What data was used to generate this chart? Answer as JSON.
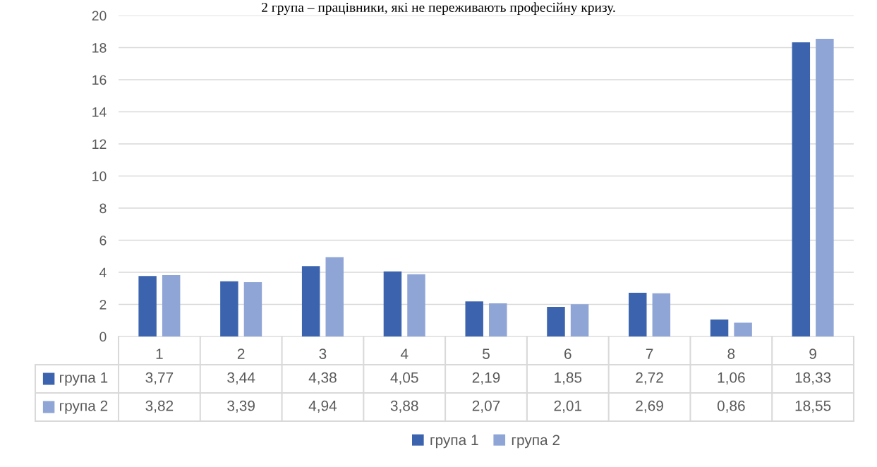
{
  "chart_data": {
    "type": "bar",
    "annotations": [
      "2 група – працівники, які не переживають професійну кризу."
    ],
    "categories": [
      "1",
      "2",
      "3",
      "4",
      "5",
      "6",
      "7",
      "8",
      "9"
    ],
    "series": [
      {
        "name": "група 1",
        "color": "#3c64ae",
        "values": [
          3.77,
          3.44,
          4.38,
          4.05,
          2.19,
          1.85,
          2.72,
          1.06,
          18.33
        ],
        "value_labels": [
          "3,77",
          "3,44",
          "4,38",
          "4,05",
          "2,19",
          "1,85",
          "2,72",
          "1,06",
          "18,33"
        ]
      },
      {
        "name": "група 2",
        "color": "#8fa5d6",
        "values": [
          3.82,
          3.39,
          4.94,
          3.88,
          2.07,
          2.01,
          2.69,
          0.86,
          18.55
        ],
        "value_labels": [
          "3,82",
          "3,39",
          "4,94",
          "3,88",
          "2,07",
          "2,01",
          "2,69",
          "0,86",
          "18,55"
        ]
      }
    ],
    "ylim": [
      0,
      20
    ],
    "yticks": [
      0,
      2,
      4,
      6,
      8,
      10,
      12,
      14,
      16,
      18,
      20
    ],
    "grid": "y",
    "legend": "bottom"
  }
}
